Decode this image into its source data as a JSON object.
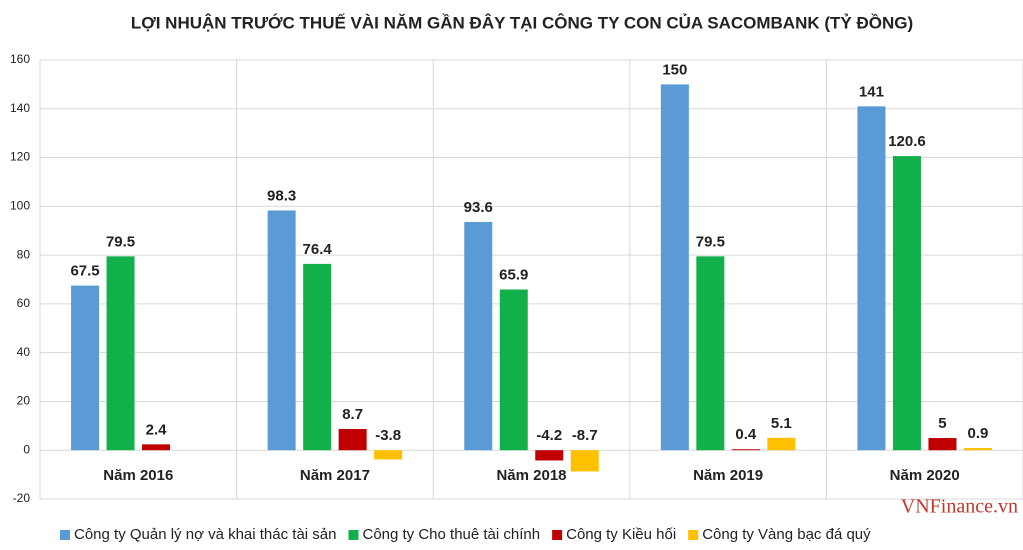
{
  "chart_data": {
    "type": "bar",
    "title": "LỢI NHUẬN TRƯỚC THUẾ VÀI NĂM GẦN ĐÂY TẠI CÔNG TY CON CỦA SACOMBANK (TỶ ĐỒNG)",
    "categories": [
      "Năm 2016",
      "Năm 2017",
      "Năm 2018",
      "Năm 2019",
      "Năm 2020"
    ],
    "series": [
      {
        "name": "Công ty Quản lý nợ và khai thác tài sản",
        "color": "#5b9bd5",
        "values": [
          67.5,
          98.3,
          93.6,
          150,
          141
        ]
      },
      {
        "name": "Công ty Cho thuê tài chính",
        "color": "#12b04a",
        "values": [
          79.5,
          76.4,
          65.9,
          79.5,
          120.6
        ]
      },
      {
        "name": "Công ty Kiều hối",
        "color": "#c00000",
        "values": [
          2.4,
          8.7,
          -4.2,
          0.4,
          5
        ]
      },
      {
        "name": "Công ty Vàng bạc đá quý",
        "color": "#ffc000",
        "values": [
          null,
          -3.8,
          -8.7,
          5.1,
          0.9
        ]
      }
    ],
    "ylim": [
      -20,
      160
    ],
    "yticks": [
      -20,
      0,
      20,
      40,
      60,
      80,
      100,
      120,
      140,
      160
    ],
    "grid": true,
    "legend": "bottom",
    "watermark": "VNFinance.vn"
  }
}
